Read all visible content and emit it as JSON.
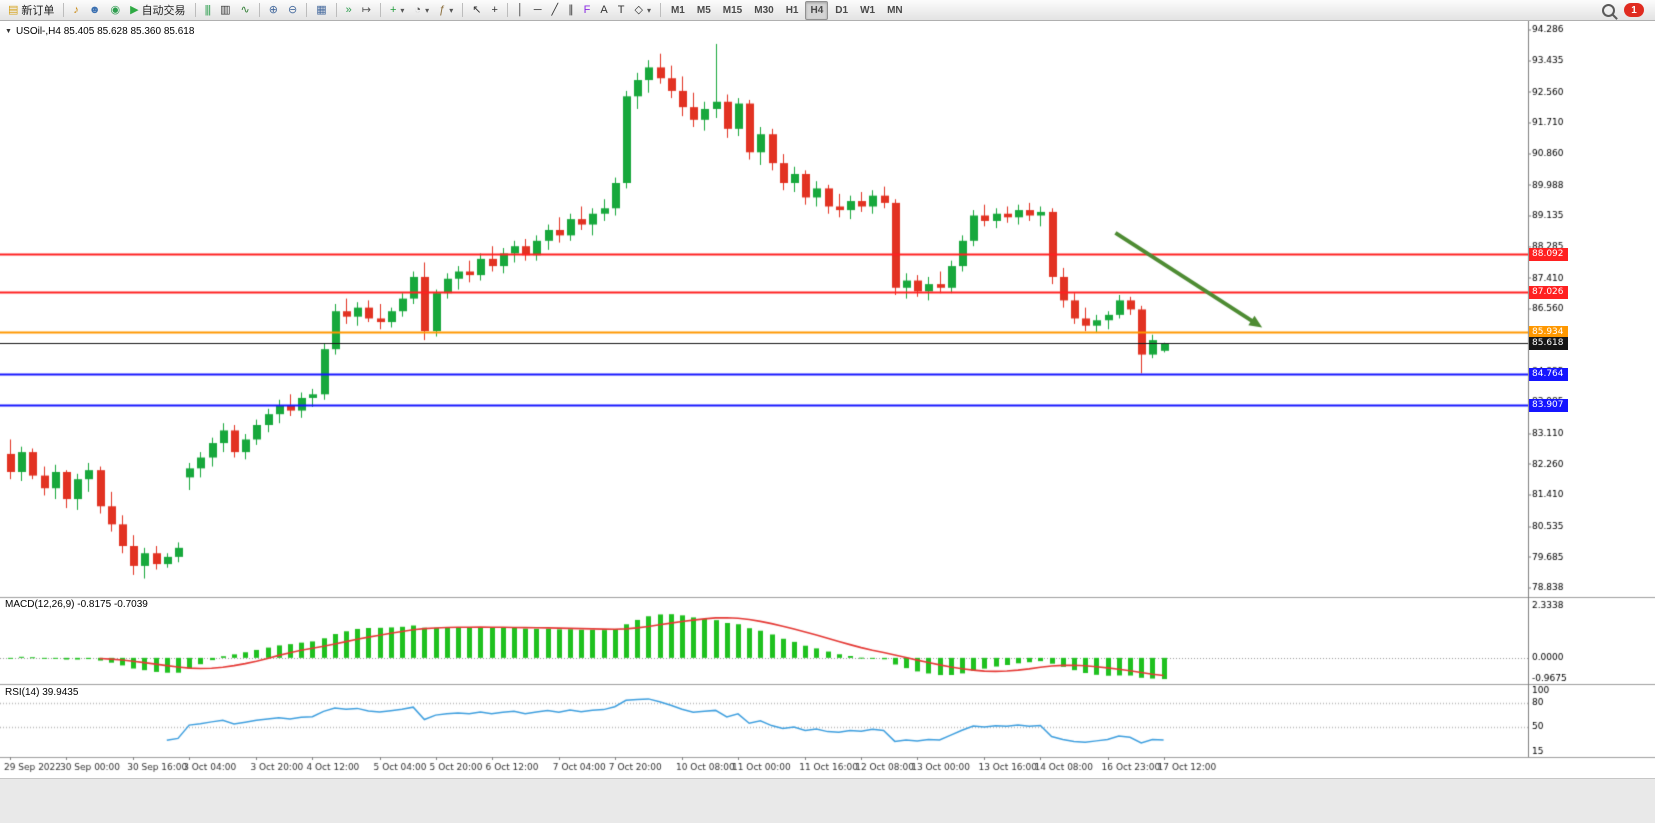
{
  "toolbar": {
    "notification_count": "1",
    "items": [
      {
        "name": "new-order-button",
        "glyph": "▤",
        "glyph_color": "#d4a017",
        "label": "新订单"
      },
      {
        "sep": true
      },
      {
        "name": "signal-horn-button",
        "glyph": "♪",
        "glyph_color": "#c8860a"
      },
      {
        "name": "community-button",
        "glyph": "☻",
        "glyph_color": "#3a6fb0"
      },
      {
        "name": "market-button",
        "glyph": "◉",
        "glyph_color": "#2e9e4f"
      },
      {
        "name": "auto-trading-button",
        "glyph": "▶",
        "glyph_color": "#2faa44",
        "label": "自动交易"
      },
      {
        "sep": true
      },
      {
        "name": "bar-chart-button",
        "glyph": "|||",
        "glyph_color": "#2e9e4f"
      },
      {
        "name": "candlestick-chart-button",
        "glyph": "▥",
        "glyph_color": "#333333"
      },
      {
        "name": "line-chart-button",
        "glyph": "∿",
        "glyph_color": "#2e7d32"
      },
      {
        "sep": true
      },
      {
        "name": "zoom-in-button",
        "glyph": "⊕",
        "glyph_color": "#44699d"
      },
      {
        "name": "zoom-out-button",
        "glyph": "⊖",
        "glyph_color": "#44699d"
      },
      {
        "sep": true
      },
      {
        "name": "tile-windows-button",
        "glyph": "▦",
        "glyph_color": "#44699d"
      },
      {
        "sep": true
      },
      {
        "name": "auto-scroll-button",
        "glyph": "»",
        "glyph_color": "#2e9e4f"
      },
      {
        "name": "chart-shift-button",
        "glyph": "↦",
        "glyph_color": "#555555"
      },
      {
        "sep": true
      },
      {
        "name": "new-chart-button",
        "glyph": "+",
        "glyph_color": "#1f9d3a",
        "dd": true
      },
      {
        "name": "period-clock-button",
        "glyph": "◔",
        "glyph_color": "#555555",
        "dd": true
      },
      {
        "name": "indicators-button",
        "glyph": "ƒ",
        "glyph_color": "#8a6d3b",
        "dd": true
      },
      {
        "sep": true
      },
      {
        "name": "cursor-button",
        "glyph": "↖",
        "glyph_color": "#333333"
      },
      {
        "name": "crosshair-button",
        "glyph": "+",
        "glyph_color": "#333333"
      },
      {
        "sep": true
      },
      {
        "name": "vertical-line-button",
        "glyph": "│",
        "glyph_color": "#333333"
      },
      {
        "name": "horizontal-line-button",
        "glyph": "─",
        "glyph_color": "#333333"
      },
      {
        "name": "trendline-button",
        "glyph": "╱",
        "glyph_color": "#333333"
      },
      {
        "name": "channel-button",
        "glyph": "∥",
        "glyph_color": "#333333"
      },
      {
        "name": "fibonacci-button",
        "glyph": "F",
        "glyph_color": "#8a2be2"
      },
      {
        "name": "text-button",
        "glyph": "A",
        "glyph_color": "#333333"
      },
      {
        "name": "label-button",
        "glyph": "T",
        "glyph_color": "#333333"
      },
      {
        "name": "shapes-button",
        "glyph": "◇",
        "glyph_color": "#333333",
        "dd": true
      },
      {
        "sep": true
      },
      {
        "name": "timeframe-m1-button",
        "label": "M1",
        "tf": true
      },
      {
        "name": "timeframe-m5-button",
        "label": "M5",
        "tf": true
      },
      {
        "name": "timeframe-m15-button",
        "label": "M15",
        "tf": true
      },
      {
        "name": "timeframe-m30-button",
        "label": "M30",
        "tf": true
      },
      {
        "name": "timeframe-h1-button",
        "label": "H1",
        "tf": true
      },
      {
        "name": "timeframe-h4-button",
        "label": "H4",
        "tf": true,
        "active": true
      },
      {
        "name": "timeframe-d1-button",
        "label": "D1",
        "tf": true
      },
      {
        "name": "timeframe-w1-button",
        "label": "W1",
        "tf": true
      },
      {
        "name": "timeframe-mn-button",
        "label": "MN",
        "tf": true
      }
    ]
  },
  "chart_header": {
    "collapse_icon": "▼",
    "title": "USOil-,H4  85.405 85.628 85.360 85.618"
  },
  "chart_data": {
    "type": "candlestick",
    "symbol": "USOil-",
    "period": "H4",
    "last_ohlc": {
      "open": "85.405",
      "high": "85.628",
      "low": "85.360",
      "close": "85.618"
    },
    "colors": {
      "up": "#17A83C",
      "down": "#E23222",
      "background": "#FFFFFF",
      "axis": "#808080",
      "axis_text": "#000000",
      "separator": "#9E9E9E",
      "macd_hist": "#1FC11F",
      "macd_signal": "#E53935",
      "rsi_line": "#3E9FDF",
      "level_dotted": "#B8B8B8",
      "arrow": "#4E8C33",
      "date_text": "#333333"
    },
    "y_axis": {
      "top_price": 94.286,
      "bottom_price": 78.838,
      "labels": [
        "94.286",
        "93.435",
        "92.560",
        "91.710",
        "90.860",
        "89.988",
        "89.135",
        "88.285",
        "87.410",
        "86.560",
        "85.685",
        "84.835",
        "83.985",
        "83.110",
        "82.260",
        "81.410",
        "80.535",
        "79.685",
        "78.838"
      ]
    },
    "x_axis_labels": [
      {
        "i": 0,
        "t": "29 Sep 2022"
      },
      {
        "i": 5,
        "t": "30 Sep 00:00"
      },
      {
        "i": 11,
        "t": "30 Sep 16:00"
      },
      {
        "i": 16,
        "t": "3 Oct 04:00"
      },
      {
        "i": 22,
        "t": "3 Oct 20:00"
      },
      {
        "i": 27,
        "t": "4 Oct 12:00"
      },
      {
        "i": 33,
        "t": "5 Oct 04:00"
      },
      {
        "i": 38,
        "t": "5 Oct 20:00"
      },
      {
        "i": 43,
        "t": "6 Oct 12:00"
      },
      {
        "i": 49,
        "t": "7 Oct 04:00"
      },
      {
        "i": 54,
        "t": "7 Oct 20:00"
      },
      {
        "i": 60,
        "t": "10 Oct 08:00"
      },
      {
        "i": 65,
        "t": "11 Oct 00:00"
      },
      {
        "i": 71,
        "t": "11 Oct 16:00"
      },
      {
        "i": 76,
        "t": "12 Oct 08:00"
      },
      {
        "i": 81,
        "t": "13 Oct 00:00"
      },
      {
        "i": 87,
        "t": "13 Oct 16:00"
      },
      {
        "i": 92,
        "t": "14 Oct 08:00"
      },
      {
        "i": 98,
        "t": "16 Oct 23:00"
      },
      {
        "i": 103,
        "t": "17 Oct 12:00"
      }
    ],
    "price_lines": [
      {
        "label": "88.092",
        "price": 88.092,
        "color": "#FF2020",
        "width": 2
      },
      {
        "label": "87.026",
        "price": 87.026,
        "color": "#FF2020",
        "width": 2
      },
      {
        "label": "85.934",
        "price": 85.934,
        "color": "#FF9800",
        "width": 2
      },
      {
        "label": "85.618",
        "price": 85.618,
        "color": "#151515",
        "width": 1,
        "kind": "current-price"
      },
      {
        "label": "84.764",
        "price": 84.764,
        "color": "#1515FF",
        "width": 2
      },
      {
        "label": "83.907",
        "price": 83.907,
        "color": "#1515FF",
        "width": 2
      }
    ],
    "annotations": [
      {
        "type": "arrow",
        "color": "#4E8C33",
        "from": {
          "bar": 98.7,
          "price": 88.67
        },
        "to": {
          "bar": 111.8,
          "price": 86.05
        }
      }
    ],
    "indicators": {
      "macd": {
        "label": "MACD(12,26,9) -0.8175 -0.7039",
        "params": [
          12,
          26,
          9
        ],
        "main_value": -0.8175,
        "signal_value": -0.7039,
        "axis_max": 2.3338,
        "axis_min": -0.9675,
        "axis_labels": [
          "2.3338",
          "0.0000",
          "-0.9675"
        ]
      },
      "rsi": {
        "label": "RSI(14) 39.9435",
        "period": 14,
        "value": 39.9435,
        "axis_max": 100,
        "axis_min": 15,
        "levels": [
          80,
          50
        ],
        "axis_labels": [
          "100",
          "80",
          "50",
          "15"
        ]
      }
    },
    "ohlc": [
      [
        82.55,
        82.95,
        81.85,
        82.05
      ],
      [
        82.05,
        82.75,
        81.8,
        82.6
      ],
      [
        82.6,
        82.7,
        81.85,
        81.95
      ],
      [
        81.95,
        82.2,
        81.4,
        81.6
      ],
      [
        81.6,
        82.25,
        81.3,
        82.05
      ],
      [
        82.05,
        82.1,
        81.05,
        81.3
      ],
      [
        81.3,
        82.0,
        81.0,
        81.85
      ],
      [
        81.85,
        82.3,
        81.5,
        82.1
      ],
      [
        82.1,
        82.2,
        80.9,
        81.1
      ],
      [
        81.1,
        81.5,
        80.4,
        80.6
      ],
      [
        80.6,
        80.85,
        79.8,
        80.0
      ],
      [
        80.0,
        80.3,
        79.2,
        79.45
      ],
      [
        79.45,
        79.95,
        79.1,
        79.8
      ],
      [
        79.8,
        80.0,
        79.35,
        79.5
      ],
      [
        79.5,
        79.8,
        79.4,
        79.7
      ],
      [
        79.7,
        80.1,
        79.55,
        79.95
      ],
      [
        81.9,
        82.3,
        81.55,
        82.15
      ],
      [
        82.15,
        82.6,
        81.9,
        82.45
      ],
      [
        82.45,
        83.0,
        82.2,
        82.85
      ],
      [
        82.85,
        83.4,
        82.6,
        83.2
      ],
      [
        83.2,
        83.35,
        82.45,
        82.6
      ],
      [
        82.6,
        83.1,
        82.4,
        82.95
      ],
      [
        82.95,
        83.5,
        82.8,
        83.35
      ],
      [
        83.35,
        83.8,
        83.15,
        83.65
      ],
      [
        83.65,
        84.05,
        83.4,
        83.9
      ],
      [
        83.9,
        84.2,
        83.6,
        83.75
      ],
      [
        83.75,
        84.25,
        83.55,
        84.1
      ],
      [
        84.1,
        84.35,
        83.85,
        84.2
      ],
      [
        84.2,
        85.6,
        84.05,
        85.45
      ],
      [
        85.45,
        86.7,
        85.3,
        86.5
      ],
      [
        86.5,
        86.85,
        86.15,
        86.35
      ],
      [
        86.35,
        86.75,
        86.1,
        86.6
      ],
      [
        86.6,
        86.8,
        86.2,
        86.3
      ],
      [
        86.3,
        86.7,
        86.0,
        86.2
      ],
      [
        86.2,
        86.6,
        86.05,
        86.5
      ],
      [
        86.5,
        87.0,
        86.35,
        86.85
      ],
      [
        86.85,
        87.6,
        86.7,
        87.45
      ],
      [
        87.45,
        87.85,
        85.7,
        85.95
      ],
      [
        85.95,
        87.1,
        85.8,
        87.0
      ],
      [
        87.0,
        87.55,
        86.85,
        87.4
      ],
      [
        87.4,
        87.75,
        87.1,
        87.6
      ],
      [
        87.6,
        87.9,
        87.3,
        87.5
      ],
      [
        87.5,
        88.1,
        87.35,
        87.95
      ],
      [
        87.95,
        88.3,
        87.6,
        87.75
      ],
      [
        87.75,
        88.25,
        87.55,
        88.1
      ],
      [
        88.1,
        88.45,
        87.85,
        88.3
      ],
      [
        88.3,
        88.5,
        87.9,
        88.05
      ],
      [
        88.05,
        88.6,
        87.9,
        88.45
      ],
      [
        88.45,
        88.9,
        88.2,
        88.75
      ],
      [
        88.75,
        89.1,
        88.4,
        88.6
      ],
      [
        88.6,
        89.2,
        88.45,
        89.05
      ],
      [
        89.05,
        89.4,
        88.75,
        88.9
      ],
      [
        88.9,
        89.35,
        88.6,
        89.2
      ],
      [
        89.2,
        89.6,
        89.0,
        89.35
      ],
      [
        89.35,
        90.2,
        89.15,
        90.05
      ],
      [
        90.05,
        92.6,
        89.9,
        92.45
      ],
      [
        92.45,
        93.1,
        92.1,
        92.9
      ],
      [
        92.9,
        93.45,
        92.55,
        93.25
      ],
      [
        93.25,
        93.63,
        92.8,
        92.95
      ],
      [
        92.95,
        93.3,
        92.4,
        92.6
      ],
      [
        92.6,
        93.0,
        91.9,
        92.15
      ],
      [
        92.15,
        92.55,
        91.6,
        91.8
      ],
      [
        91.8,
        92.3,
        91.5,
        92.1
      ],
      [
        92.1,
        93.9,
        91.85,
        92.3
      ],
      [
        92.3,
        92.5,
        91.3,
        91.55
      ],
      [
        91.55,
        92.4,
        91.35,
        92.25
      ],
      [
        92.25,
        92.35,
        90.7,
        90.9
      ],
      [
        90.9,
        91.6,
        90.55,
        91.4
      ],
      [
        91.4,
        91.55,
        90.4,
        90.6
      ],
      [
        90.6,
        90.85,
        89.85,
        90.05
      ],
      [
        90.05,
        90.5,
        89.8,
        90.3
      ],
      [
        90.3,
        90.4,
        89.45,
        89.65
      ],
      [
        89.65,
        90.1,
        89.4,
        89.9
      ],
      [
        89.9,
        90.0,
        89.2,
        89.4
      ],
      [
        89.4,
        89.75,
        89.1,
        89.3
      ],
      [
        89.3,
        89.7,
        89.05,
        89.55
      ],
      [
        89.55,
        89.8,
        89.25,
        89.4
      ],
      [
        89.4,
        89.85,
        89.2,
        89.7
      ],
      [
        89.7,
        89.95,
        89.35,
        89.5
      ],
      [
        89.5,
        89.6,
        86.95,
        87.15
      ],
      [
        87.15,
        87.55,
        86.85,
        87.35
      ],
      [
        87.35,
        87.5,
        86.9,
        87.05
      ],
      [
        87.05,
        87.45,
        86.8,
        87.25
      ],
      [
        87.25,
        87.6,
        87.0,
        87.15
      ],
      [
        87.15,
        87.9,
        87.0,
        87.75
      ],
      [
        87.75,
        88.6,
        87.6,
        88.45
      ],
      [
        88.45,
        89.3,
        88.3,
        89.15
      ],
      [
        89.15,
        89.45,
        88.85,
        89.0
      ],
      [
        89.0,
        89.35,
        88.8,
        89.2
      ],
      [
        89.2,
        89.4,
        88.95,
        89.1
      ],
      [
        89.1,
        89.45,
        88.9,
        89.3
      ],
      [
        89.3,
        89.5,
        89.0,
        89.15
      ],
      [
        89.15,
        89.4,
        88.85,
        89.25
      ],
      [
        89.25,
        89.35,
        87.25,
        87.45
      ],
      [
        87.45,
        87.7,
        86.6,
        86.8
      ],
      [
        86.8,
        87.0,
        86.15,
        86.3
      ],
      [
        86.3,
        86.6,
        85.95,
        86.1
      ],
      [
        86.1,
        86.4,
        85.9,
        86.25
      ],
      [
        86.25,
        86.5,
        86.0,
        86.4
      ],
      [
        86.4,
        86.95,
        86.3,
        86.8
      ],
      [
        86.8,
        86.9,
        86.4,
        86.55
      ],
      [
        86.55,
        86.65,
        84.78,
        85.3
      ],
      [
        85.3,
        85.85,
        85.2,
        85.7
      ],
      [
        85.405,
        85.628,
        85.36,
        85.618
      ]
    ]
  }
}
